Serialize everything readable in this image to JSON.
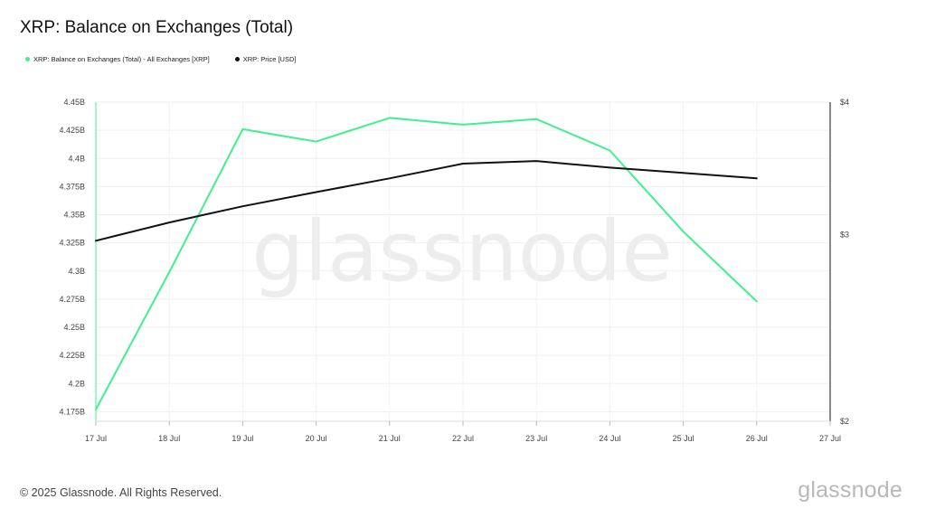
{
  "title": "XRP: Balance on Exchanges (Total)",
  "legend": [
    {
      "label": "XRP: Balance on Exchanges (Total) - All Exchanges [XRP]",
      "color": "#3ff08f"
    },
    {
      "label": "XRP: Price [USD]",
      "color": "#111111"
    }
  ],
  "footer": "© 2025 Glassnode. All Rights Reserved.",
  "brand": "glassnode",
  "watermark": "glassnode",
  "chart_data": {
    "type": "line",
    "x": [
      "17 Jul",
      "18 Jul",
      "19 Jul",
      "20 Jul",
      "21 Jul",
      "22 Jul",
      "23 Jul",
      "24 Jul",
      "25 Jul",
      "26 Jul"
    ],
    "x_tick_labels": [
      "17 Jul",
      "18 Jul",
      "19 Jul",
      "20 Jul",
      "21 Jul",
      "22 Jul",
      "23 Jul",
      "24 Jul",
      "25 Jul",
      "26 Jul",
      "27 Jul"
    ],
    "y_left": {
      "ticks": [
        4.175,
        4.2,
        4.225,
        4.25,
        4.275,
        4.3,
        4.325,
        4.35,
        4.375,
        4.4,
        4.425,
        4.45
      ],
      "tick_labels": [
        "4.175B",
        "4.2B",
        "4.225B",
        "4.25B",
        "4.275B",
        "4.3B",
        "4.325B",
        "4.35B",
        "4.375B",
        "4.4B",
        "4.425B",
        "4.45B"
      ],
      "range": [
        4.1665,
        4.45
      ],
      "unit": "B XRP"
    },
    "y_right": {
      "ticks": [
        2,
        3,
        4
      ],
      "tick_labels": [
        "$2",
        "$3",
        "$4"
      ],
      "range": [
        2,
        4
      ],
      "scale": "log"
    },
    "series": [
      {
        "name": "XRP: Balance on Exchanges (Total) - All Exchanges [XRP]",
        "axis": "left",
        "color": "#3ff08f",
        "values": [
          4.177,
          4.299,
          4.426,
          4.415,
          4.436,
          4.43,
          4.435,
          4.407,
          4.335,
          4.273
        ]
      },
      {
        "name": "XRP: Price [USD]",
        "axis": "right",
        "color": "#111111",
        "values": [
          2.96,
          3.08,
          3.19,
          3.29,
          3.39,
          3.5,
          3.52,
          3.47,
          3.43,
          3.39
        ]
      }
    ],
    "grid": true
  }
}
